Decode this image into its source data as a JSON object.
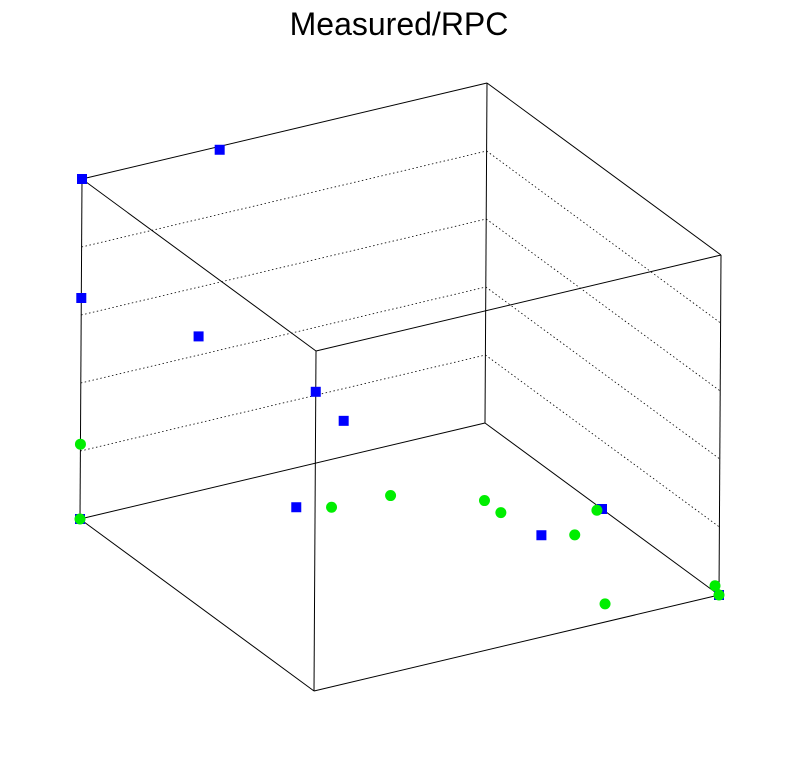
{
  "chart_data": {
    "type": "scatter3d",
    "title": "Measured/RPC",
    "grid": true,
    "axes_visible_labels": false,
    "series": [
      {
        "marker": "square",
        "color": "#0000ff",
        "points": [
          [
            0,
            0,
            1.0
          ],
          [
            0.0,
            0.34,
            0.99
          ],
          [
            0,
            0,
            0.65
          ],
          [
            0.92,
            0,
            0.5
          ],
          [
            0.5,
            0,
            0.79
          ],
          [
            0.5,
            0.36,
            0.44
          ],
          [
            0,
            0,
            0
          ],
          [
            1,
            1,
            0
          ],
          [
            1,
            0.56,
            0.3
          ],
          [
            1,
            0,
            0.88
          ],
          [
            0.5,
            1,
            0
          ]
        ]
      },
      {
        "marker": "circle",
        "color": "#00ee00",
        "points": [
          [
            0,
            0,
            0.22
          ],
          [
            0,
            0,
            0
          ],
          [
            0.33,
            0.43,
            0.08
          ],
          [
            0.43,
            0.75,
            0.06
          ],
          [
            0.34,
            0.57,
            0.08
          ],
          [
            0.66,
            0.84,
            0.05
          ],
          [
            0.53,
            0.97,
            0.02
          ],
          [
            1.0,
            0.99,
            0.03
          ],
          [
            0.98,
            0.73,
            0.04
          ],
          [
            0.5,
            0.75,
            0.06
          ],
          [
            1,
            1,
            0
          ]
        ]
      }
    ],
    "colors": {
      "frame": "#000000",
      "grid": "#000000"
    }
  }
}
